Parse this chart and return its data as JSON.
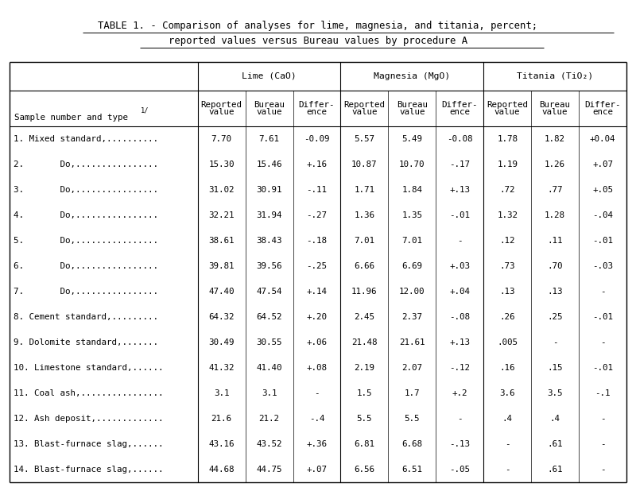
{
  "title_line1": "TABLE 1. - Comparison of analyses for lime, magnesia, and titania, percent;",
  "title_line2": "reported values versus Bureau values by procedure A",
  "rows": [
    [
      "1. Mixed standard,..........",
      "7.70",
      "7.61",
      "-0.09",
      "5.57",
      "5.49",
      "-0.08",
      "1.78",
      "1.82",
      "+0.04"
    ],
    [
      "2.       Do,................",
      "15.30",
      "15.46",
      "+.16",
      "10.87",
      "10.70",
      "-.17",
      "1.19",
      "1.26",
      "+.07"
    ],
    [
      "3.       Do,................",
      "31.02",
      "30.91",
      "-.11",
      "1.71",
      "1.84",
      "+.13",
      ".72",
      ".77",
      "+.05"
    ],
    [
      "4.       Do,................",
      "32.21",
      "31.94",
      "-.27",
      "1.36",
      "1.35",
      "-.01",
      "1.32",
      "1.28",
      "-.04"
    ],
    [
      "5.       Do,................",
      "38.61",
      "38.43",
      "-.18",
      "7.01",
      "7.01",
      "-",
      ".12",
      ".11",
      "-.01"
    ],
    [
      "6.       Do,................",
      "39.81",
      "39.56",
      "-.25",
      "6.66",
      "6.69",
      "+.03",
      ".73",
      ".70",
      "-.03"
    ],
    [
      "7.       Do,................",
      "47.40",
      "47.54",
      "+.14",
      "11.96",
      "12.00",
      "+.04",
      ".13",
      ".13",
      "-"
    ],
    [
      "8. Cement standard,.........",
      "64.32",
      "64.52",
      "+.20",
      "2.45",
      "2.37",
      "-.08",
      ".26",
      ".25",
      "-.01"
    ],
    [
      "9. Dolomite standard,.......",
      "30.49",
      "30.55",
      "+.06",
      "21.48",
      "21.61",
      "+.13",
      ".005",
      "-",
      "-"
    ],
    [
      "10. Limestone standard,......",
      "41.32",
      "41.40",
      "+.08",
      "2.19",
      "2.07",
      "-.12",
      ".16",
      ".15",
      "-.01"
    ],
    [
      "11. Coal ash,................",
      "3.1",
      "3.1",
      "-",
      "1.5",
      "1.7",
      "+.2",
      "3.6",
      "3.5",
      "-.1"
    ],
    [
      "12. Ash deposit,.............",
      "21.6",
      "21.2",
      "-.4",
      "5.5",
      "5.5",
      "-",
      ".4",
      ".4",
      "-"
    ],
    [
      "13. Blast-furnace slag,......",
      "43.16",
      "43.52",
      "+.36",
      "6.81",
      "6.68",
      "-.13",
      "-",
      ".61",
      "-"
    ],
    [
      "14. Blast-furnace slag,......",
      "44.68",
      "44.75",
      "+.07",
      "6.56",
      "6.51",
      "-.05",
      "-",
      ".61",
      "-"
    ]
  ],
  "bg_color": "#ffffff",
  "text_color": "#000000"
}
